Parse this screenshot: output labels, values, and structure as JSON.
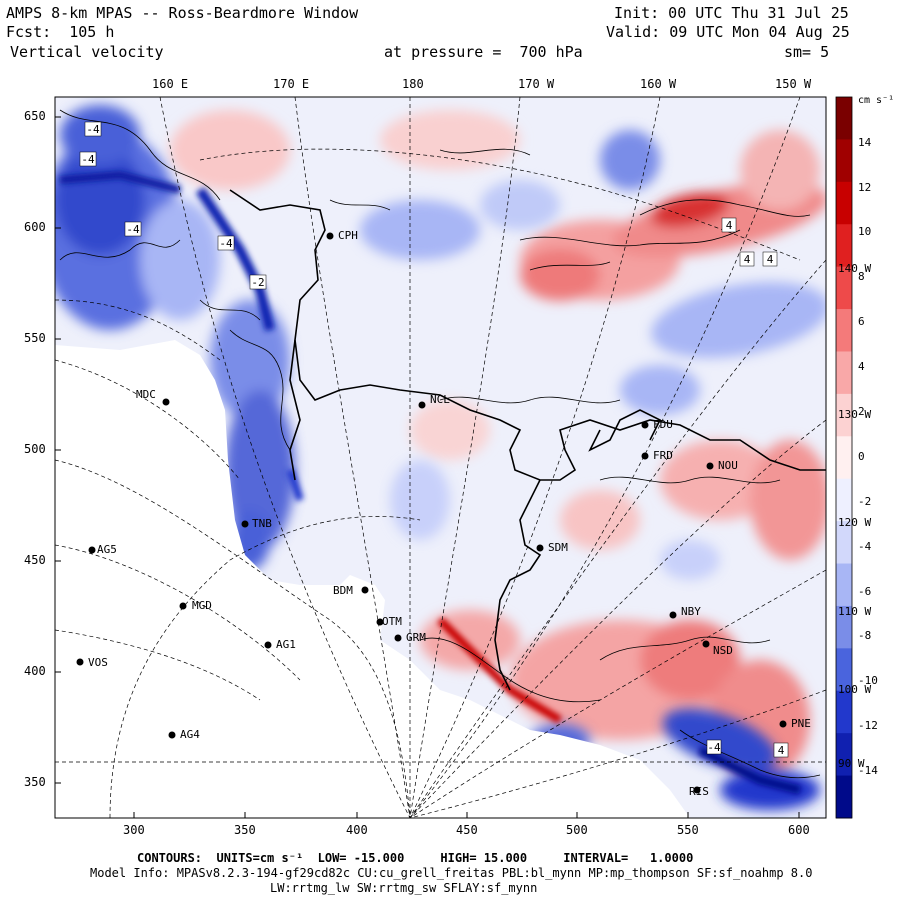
{
  "header": {
    "title": "AMPS 8-km MPAS -- Ross-Beardmore Window",
    "fcst": "Fcst:  105 h",
    "field": "Vertical velocity",
    "init": "Init: 00 UTC Thu 31 Jul 25",
    "valid": "Valid: 09 UTC Mon 04 Aug 25",
    "pressure": "at pressure =  700 hPa",
    "sm": "sm= 5"
  },
  "top_lon_labels": [
    "160 E",
    "170 E",
    "180",
    "170 W",
    "160 W",
    "150 W"
  ],
  "right_lon_labels": [
    "140 W",
    "130 W",
    "120 W",
    "110 W",
    "100 W",
    "90 W"
  ],
  "y_ticks": [
    "650",
    "600",
    "550",
    "500",
    "450",
    "400",
    "350"
  ],
  "x_ticks": [
    "300",
    "350",
    "400",
    "450",
    "500",
    "550",
    "600"
  ],
  "colorbar": {
    "unit": "cm s⁻¹",
    "labels": [
      "14",
      "12",
      "10",
      "8",
      "6",
      "4",
      "2",
      "0",
      "-2",
      "-4",
      "-6",
      "-8",
      "-10",
      "-12",
      "-14"
    ],
    "colors": [
      "#7a0000",
      "#a00000",
      "#c80000",
      "#e02020",
      "#ee4a4a",
      "#f47a7a",
      "#f9a8a8",
      "#fcd2d2",
      "#fff0f0",
      "#eef0ff",
      "#d2d8fb",
      "#a8b6f5",
      "#7a8de8",
      "#4a64dd",
      "#2238cc",
      "#1020b0",
      "#000a8a"
    ]
  },
  "stations": [
    {
      "name": "CPH"
    },
    {
      "name": "MDC"
    },
    {
      "name": "NCL"
    },
    {
      "name": "FDU"
    },
    {
      "name": "FRD"
    },
    {
      "name": "NOU"
    },
    {
      "name": "TNB"
    },
    {
      "name": "AG5"
    },
    {
      "name": "SDM"
    },
    {
      "name": "BDM"
    },
    {
      "name": "MGD"
    },
    {
      "name": "NBY"
    },
    {
      "name": "OTM"
    },
    {
      "name": "GRM"
    },
    {
      "name": "AG1"
    },
    {
      "name": "NSD"
    },
    {
      "name": "VOS"
    },
    {
      "name": "AG4"
    },
    {
      "name": "PNE"
    },
    {
      "name": "RIS"
    }
  ],
  "footer": {
    "contours": "CONTOURS:  UNITS=cm s⁻¹  LOW= -15.000     HIGH= 15.000     INTERVAL=   1.0000",
    "model_info": "Model Info: MPASv8.2.3-194-gf29cd82c CU:cu_grell_freitas PBL:bl_mynn MP:mp_thompson SF:sf_noahmp 8.0",
    "radiation": "LW:rrtmg_lw SW:rrtmg_sw SFLAY:sf_mynn"
  }
}
